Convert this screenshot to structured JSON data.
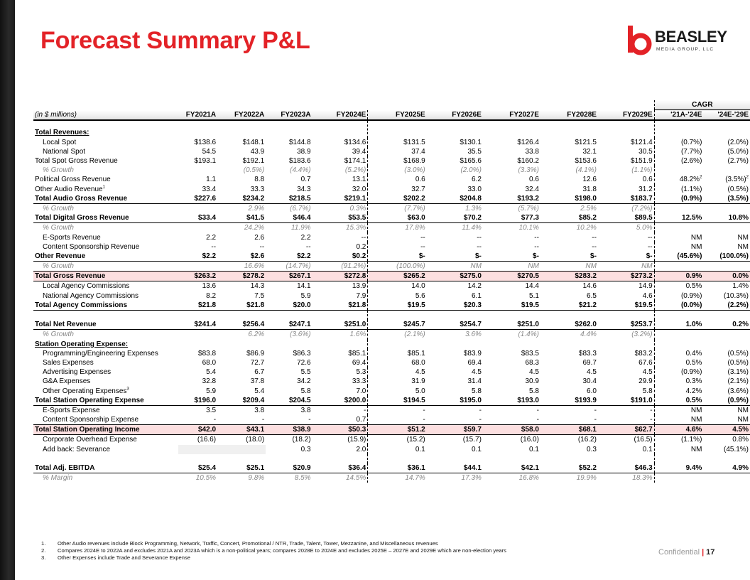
{
  "title": "Forecast Summary P&L",
  "logo": {
    "word": "BEASLEY",
    "sub": "MEDIA GROUP, LLC"
  },
  "table": {
    "unit_label": "(in $ millions)",
    "cagr_label": "CAGR",
    "columns": [
      "FY2021A",
      "FY2022A",
      "FY2023A",
      "FY2024E",
      "FY2025E",
      "FY2026E",
      "FY2027E",
      "FY2028E",
      "FY2029E",
      "'21A-'24E",
      "'24E-'29E"
    ],
    "rows": [
      {
        "style": "section",
        "label": "Total Revenues:",
        "values": [
          "",
          "",
          "",
          "",
          "",
          "",
          "",
          "",
          "",
          "",
          ""
        ]
      },
      {
        "style": "item",
        "label": "Local Spot",
        "values": [
          "$138.6",
          "$148.1",
          "$144.8",
          "$134.6",
          "$131.5",
          "$130.1",
          "$126.4",
          "$121.5",
          "$121.4",
          "(0.7%)",
          "(2.0%)"
        ]
      },
      {
        "style": "item",
        "label": "National Spot",
        "values": [
          "54.5",
          "43.9",
          "38.9",
          "39.4",
          "37.4",
          "35.5",
          "33.8",
          "32.1",
          "30.5",
          "(7.7%)",
          "(5.0%)"
        ]
      },
      {
        "style": "subtotal",
        "label": "Total Spot Gross Revenue",
        "values": [
          "$193.1",
          "$192.1",
          "$183.6",
          "$174.1",
          "$168.9",
          "$165.6",
          "$160.2",
          "$153.6",
          "$151.9",
          "(2.6%)",
          "(2.7%)"
        ]
      },
      {
        "style": "pct",
        "label": "% Growth",
        "values": [
          "",
          "(0.5%)",
          "(4.4%)",
          "(5.2%)",
          "(3.0%)",
          "(2.0%)",
          "(3.3%)",
          "(4.1%)",
          "(1.1%)",
          "",
          ""
        ]
      },
      {
        "style": "plain",
        "label": "Political Gross Revenue",
        "values": [
          "1.1",
          "8.8",
          "0.7",
          "13.1",
          "0.6",
          "6.2",
          "0.6",
          "12.6",
          "0.6",
          "48.2%",
          "(3.5%)"
        ]
      },
      {
        "style": "plain",
        "label": "Other Audio Revenue",
        "values": [
          "33.4",
          "33.3",
          "34.3",
          "32.0",
          "32.7",
          "33.0",
          "32.4",
          "31.8",
          "31.2",
          "(1.1%)",
          "(0.5%)"
        ]
      },
      {
        "style": "total",
        "label": "Total Audio Gross Revenue",
        "values": [
          "$227.6",
          "$234.2",
          "$218.5",
          "$219.1",
          "$202.2",
          "$204.8",
          "$193.2",
          "$198.0",
          "$183.7",
          "(0.9%)",
          "(3.5%)"
        ]
      },
      {
        "style": "pct",
        "label": "% Growth",
        "values": [
          "",
          "2.9%",
          "(6.7%)",
          "0.3%",
          "(7.7%)",
          "1.3%",
          "(5.7%)",
          "2.5%",
          "(7.2%)",
          "",
          ""
        ]
      },
      {
        "style": "total",
        "label": "Total Digital Gross Revenue",
        "values": [
          "$33.4",
          "$41.5",
          "$46.4",
          "$53.5",
          "$63.0",
          "$70.2",
          "$77.3",
          "$85.2",
          "$89.5",
          "12.5%",
          "10.8%"
        ]
      },
      {
        "style": "pct",
        "label": "% Growth",
        "values": [
          "",
          "24.2%",
          "11.9%",
          "15.3%",
          "17.8%",
          "11.4%",
          "10.1%",
          "10.2%",
          "5.0%",
          "",
          ""
        ]
      },
      {
        "style": "item",
        "label": "E-Sports Revenue",
        "values": [
          "2.2",
          "2.6",
          "2.2",
          "--",
          "--",
          "--",
          "--",
          "--",
          "--",
          "NM",
          "NM"
        ]
      },
      {
        "style": "item",
        "label": "Content Sponsorship Revenue",
        "values": [
          "--",
          "--",
          "--",
          "0.2",
          "--",
          "--",
          "--",
          "--",
          "--",
          "NM",
          "NM"
        ]
      },
      {
        "style": "total",
        "label": "Other Revenue",
        "values": [
          "$2.2",
          "$2.6",
          "$2.2",
          "$0.2",
          "$-",
          "$-",
          "$-",
          "$-",
          "$-",
          "(45.6%)",
          "(100.0%)"
        ]
      },
      {
        "style": "pct",
        "label": "% Growth",
        "values": [
          "",
          "16.6%",
          "(14.7%)",
          "(91.2%)",
          "(100.0%)",
          "NM",
          "NM",
          "NM",
          "NM",
          "",
          ""
        ]
      },
      {
        "style": "pink",
        "label": "Total Gross Revenue",
        "values": [
          "$263.2",
          "$278.2",
          "$267.1",
          "$272.8",
          "$265.2",
          "$275.0",
          "$270.5",
          "$283.2",
          "$273.2",
          "0.9%",
          "0.0%"
        ]
      },
      {
        "style": "item",
        "label": "Local Agency Commissions",
        "values": [
          "13.6",
          "14.3",
          "14.1",
          "13.9",
          "14.0",
          "14.2",
          "14.4",
          "14.6",
          "14.9",
          "0.5%",
          "1.4%"
        ]
      },
      {
        "style": "item",
        "label": "National Agency Commissions",
        "values": [
          "8.2",
          "7.5",
          "5.9",
          "7.9",
          "5.6",
          "6.1",
          "5.1",
          "6.5",
          "4.6",
          "(0.9%)",
          "(10.3%)"
        ]
      },
      {
        "style": "total",
        "label": "Total Agency Commissions",
        "values": [
          "$21.8",
          "$21.8",
          "$20.0",
          "$21.8",
          "$19.5",
          "$20.3",
          "$19.5",
          "$21.2",
          "$19.5",
          "(0.0%)",
          "(2.2%)"
        ]
      },
      {
        "style": "spacer",
        "label": "",
        "values": [
          "",
          "",
          "",
          "",
          "",
          "",
          "",
          "",
          "",
          "",
          ""
        ]
      },
      {
        "style": "total",
        "label": "Total Net Revenue",
        "values": [
          "$241.4",
          "$256.4",
          "$247.1",
          "$251.0",
          "$245.7",
          "$254.7",
          "$251.0",
          "$262.0",
          "$253.7",
          "1.0%",
          "0.2%"
        ]
      },
      {
        "style": "pct",
        "label": "% Growth",
        "values": [
          "",
          "6.2%",
          "(3.6%)",
          "1.6%",
          "(2.1%)",
          "3.6%",
          "(1.4%)",
          "4.4%",
          "(3.2%)",
          "",
          ""
        ]
      },
      {
        "style": "section",
        "label": "Station Operating Expense:",
        "values": [
          "",
          "",
          "",
          "",
          "",
          "",
          "",
          "",
          "",
          "",
          ""
        ]
      },
      {
        "style": "item",
        "label": "Programming/Engineering Expenses",
        "values": [
          "$83.8",
          "$86.9",
          "$86.3",
          "$85.1",
          "$85.1",
          "$83.9",
          "$83.5",
          "$83.3",
          "$83.2",
          "0.4%",
          "(0.5%)"
        ]
      },
      {
        "style": "item",
        "label": "Sales Expenses",
        "values": [
          "68.0",
          "72.7",
          "72.6",
          "69.4",
          "68.0",
          "69.4",
          "68.3",
          "69.7",
          "67.6",
          "0.5%",
          "(0.5%)"
        ]
      },
      {
        "style": "item",
        "label": "Advertising Expenses",
        "values": [
          "5.4",
          "6.7",
          "5.5",
          "5.3",
          "4.5",
          "4.5",
          "4.5",
          "4.5",
          "4.5",
          "(0.9%)",
          "(3.1%)"
        ]
      },
      {
        "style": "item",
        "label": "G&A Expenses",
        "values": [
          "32.8",
          "37.8",
          "34.2",
          "33.3",
          "31.9",
          "31.4",
          "30.9",
          "30.4",
          "29.9",
          "0.3%",
          "(2.1%)"
        ]
      },
      {
        "style": "item",
        "label": "Other Operating Expenses",
        "values": [
          "5.9",
          "5.4",
          "5.8",
          "7.0",
          "5.0",
          "5.8",
          "5.8",
          "6.0",
          "5.8",
          "4.2%",
          "(3.6%)"
        ]
      },
      {
        "style": "total",
        "label": "Total Station Operating Expense",
        "values": [
          "$196.0",
          "$209.4",
          "$204.5",
          "$200.0",
          "$194.5",
          "$195.0",
          "$193.0",
          "$193.9",
          "$191.0",
          "0.5%",
          "(0.9%)"
        ]
      },
      {
        "style": "item",
        "label": "E-Sports Expense",
        "values": [
          "3.5",
          "3.8",
          "3.8",
          "-",
          "-",
          "-",
          "-",
          "-",
          "-",
          "NM",
          "NM"
        ]
      },
      {
        "style": "item",
        "label": "Content Sponsorship Expense",
        "values": [
          "-",
          "-",
          "-",
          "0.7",
          "-",
          "-",
          "-",
          "-",
          "-",
          "NM",
          "NM"
        ]
      },
      {
        "style": "pink",
        "label": "Total Station Operating Income",
        "values": [
          "$42.0",
          "$43.1",
          "$38.9",
          "$50.3",
          "$51.2",
          "$59.7",
          "$58.0",
          "$68.1",
          "$62.7",
          "4.6%",
          "4.5%"
        ]
      },
      {
        "style": "item",
        "label": "Corporate Overhead Expense",
        "values": [
          "(16.6)",
          "(18.0)",
          "(18.2)",
          "(15.9)",
          "(15.2)",
          "(15.7)",
          "(16.0)",
          "(16.2)",
          "(16.5)",
          "(1.1%)",
          "0.8%"
        ]
      },
      {
        "style": "item",
        "label": "Add back: Severance",
        "values": [
          "",
          "",
          "0.3",
          "2.0",
          "0.1",
          "0.1",
          "0.1",
          "0.3",
          "0.1",
          "NM",
          "(45.1%)"
        ]
      },
      {
        "style": "spacer",
        "label": "",
        "values": [
          "",
          "",
          "",
          "",
          "",
          "",
          "",
          "",
          "",
          "",
          ""
        ]
      },
      {
        "style": "total",
        "label": "Total Adj. EBITDA",
        "values": [
          "$25.4",
          "$25.1",
          "$20.9",
          "$36.4",
          "$36.1",
          "$44.1",
          "$42.1",
          "$52.2",
          "$46.3",
          "9.4%",
          "4.9%"
        ]
      },
      {
        "style": "pct",
        "label": "% Margin",
        "values": [
          "10.5%",
          "9.8%",
          "8.5%",
          "14.5%",
          "14.7%",
          "17.3%",
          "16.8%",
          "19.9%",
          "18.3%",
          "",
          ""
        ]
      }
    ],
    "superscripts": {
      "other_audio": "1",
      "other_operating": "3",
      "political_cagr": "2",
      "political_cagr2": "2"
    }
  },
  "footnotes": [
    {
      "num": "1.",
      "text": "Other Audio revenues include Block Programming, Network, Traffic, Concert, Promotional / NTR, Trade, Talent, Tower, Mezzanine, and Miscellaneous revenues"
    },
    {
      "num": "2.",
      "text": "Compares 2024E to 2022A and excludes 2021A and 2023A which is a non-political years; compares 2028E to 2024E and excludes 2025E – 2027E and 2029E which are non-election years"
    },
    {
      "num": "3.",
      "text": "Other Expenses include Trade and Severance Expense"
    }
  ],
  "footer": {
    "confidential": "Confidential",
    "bar": "|",
    "page": "17"
  },
  "colors": {
    "accent": "#e32227",
    "highlight": "#fcdfe0"
  }
}
